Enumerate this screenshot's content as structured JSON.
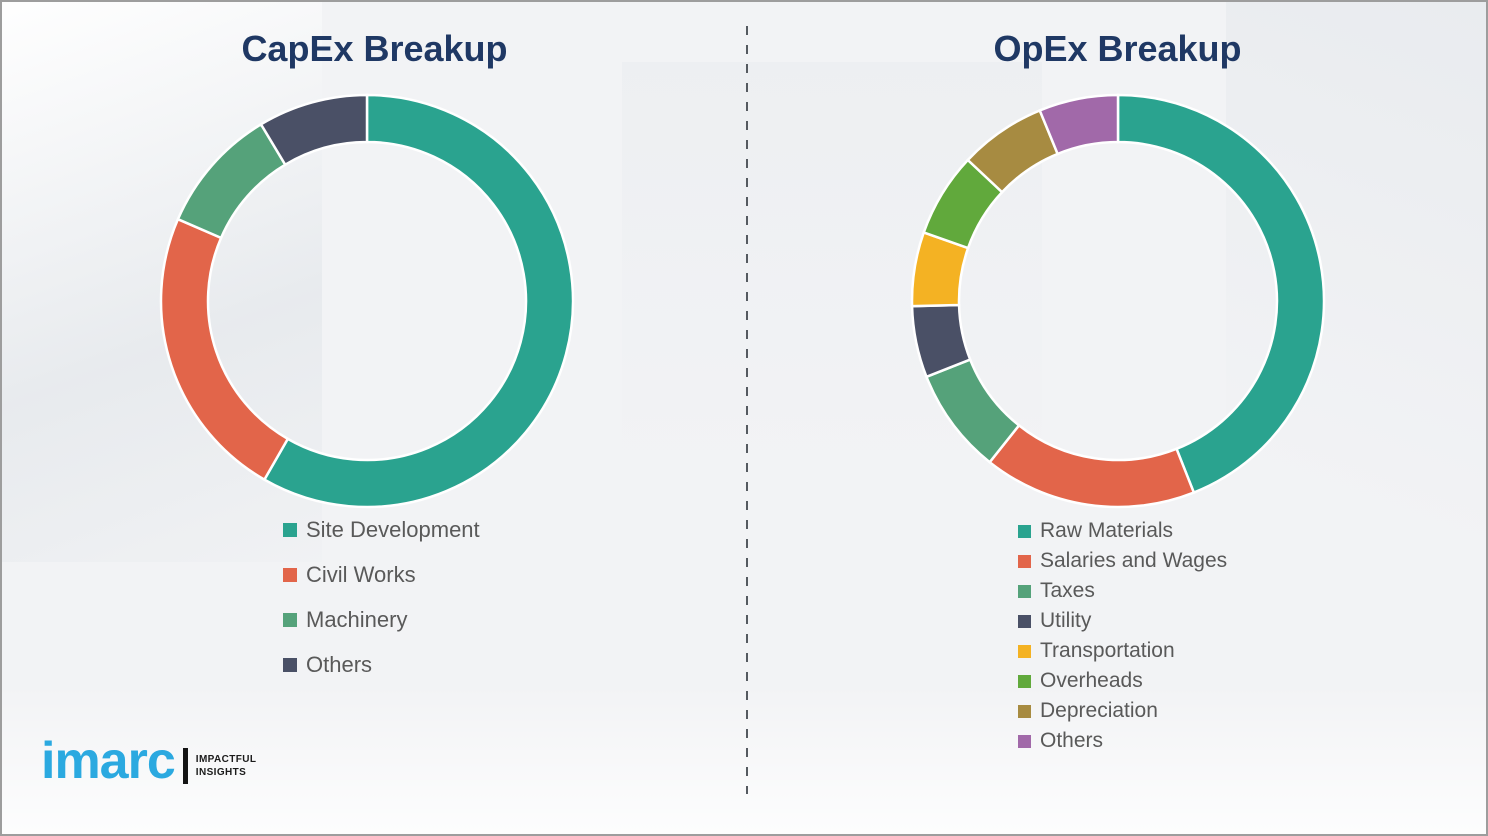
{
  "page": {
    "background_color": "#f2f3f5",
    "border_color": "#9d9d9d",
    "title_color": "#1f3864",
    "legend_text_color": "#595959",
    "divider_style": "vertical-dashed"
  },
  "chart_data": [
    {
      "type": "donut",
      "title": "CapEx Breakup",
      "categories": [
        "Site Development",
        "Civil Works",
        "Machinery",
        "Others"
      ],
      "values": [
        58.3,
        23.2,
        9.9,
        8.6
      ],
      "colors": [
        "#2aa38f",
        "#e2654a",
        "#55a27a",
        "#4a5066"
      ],
      "start_angle_deg": 0,
      "direction": "clockwise",
      "inner_radius_ratio": 0.77,
      "legend_position": "below"
    },
    {
      "type": "donut",
      "title": "OpEx Breakup",
      "categories": [
        "Raw Materials",
        "Salaries and Wages",
        "Taxes",
        "Utility",
        "Transportation",
        "Overheads",
        "Depreciation",
        "Others"
      ],
      "values": [
        44.0,
        16.7,
        8.3,
        5.6,
        5.8,
        6.6,
        6.8,
        6.2
      ],
      "colors": [
        "#2aa38f",
        "#e2654a",
        "#55a27a",
        "#4a5066",
        "#f4b223",
        "#61a93c",
        "#a78b41",
        "#a169a9"
      ],
      "start_angle_deg": 0,
      "direction": "clockwise",
      "inner_radius_ratio": 0.77,
      "legend_position": "below"
    }
  ],
  "logo": {
    "brand": "imarc",
    "brand_color": "#2ba9e0",
    "tagline_line1": "IMPACTFUL",
    "tagline_line2": "INSIGHTS"
  }
}
